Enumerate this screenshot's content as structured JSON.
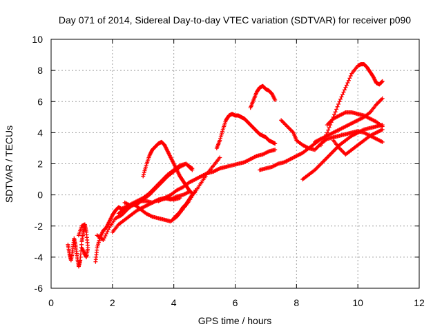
{
  "chart_data": {
    "type": "scatter",
    "title": "Day 071 of 2014, Sidereal Day-to-day VTEC variation (SDTVAR) for receiver p090",
    "xlabel": "GPS time / hours",
    "ylabel": "SDTVAR / TECUs",
    "xlim": [
      0,
      12
    ],
    "ylim": [
      -6,
      10
    ],
    "x_ticks": [
      "0",
      "2",
      "4",
      "6",
      "8",
      "10",
      "12"
    ],
    "y_ticks": [
      "-6",
      "-4",
      "-2",
      "0",
      "2",
      "4",
      "6",
      "8",
      "10"
    ],
    "grid": true,
    "marker": "plus",
    "colors": {
      "points": "#ff0000"
    },
    "series": [
      {
        "x": [
          0.55,
          0.6,
          0.65,
          0.7,
          0.75,
          0.8,
          0.85,
          0.9,
          0.95,
          1.0,
          1.05,
          1.1
        ],
        "y": [
          -3.2,
          -3.8,
          -4.2,
          -3.6,
          -2.8,
          -3.3,
          -4.0,
          -4.6,
          -4.2,
          -3.0,
          -2.4,
          -2.0
        ]
      },
      {
        "x": [
          0.9,
          1.0,
          1.1,
          1.15,
          1.2,
          1.15,
          1.1,
          1.0
        ],
        "y": [
          -2.6,
          -2.0,
          -1.9,
          -2.4,
          -3.4,
          -4.0,
          -3.8,
          -3.4
        ]
      },
      {
        "x": [
          1.45,
          1.5,
          1.6,
          1.7,
          1.8,
          1.9,
          2.0,
          2.1,
          2.2,
          2.3,
          2.5,
          2.7,
          2.9,
          3.1,
          3.3,
          3.5,
          3.7,
          3.9,
          4.1,
          4.3,
          4.5,
          4.7
        ],
        "y": [
          -4.3,
          -3.4,
          -2.7,
          -2.3,
          -2.1,
          -1.7,
          -1.3,
          -1.0,
          -0.8,
          -0.9,
          -0.7,
          -0.6,
          -0.9,
          -1.2,
          -1.4,
          -1.5,
          -1.6,
          -1.7,
          -1.4,
          -0.9,
          -0.4,
          0.3
        ]
      },
      {
        "x": [
          1.5,
          1.7,
          1.9,
          2.1,
          2.3,
          2.5,
          2.7,
          2.9,
          3.1,
          3.3,
          3.5,
          3.7,
          3.9,
          4.1,
          4.3,
          4.5
        ],
        "y": [
          -2.6,
          -2.9,
          -2.1,
          -1.5,
          -1.3,
          -0.9,
          -0.6,
          -0.4,
          -0.4,
          -0.5,
          -0.3,
          -0.2,
          -0.3,
          -0.1,
          0.0,
          0.2
        ]
      },
      {
        "x": [
          2.0,
          2.2,
          2.4,
          2.6,
          2.8,
          3.0,
          3.2,
          3.4,
          3.6,
          3.8,
          4.0,
          4.2
        ],
        "y": [
          -2.4,
          -1.9,
          -1.6,
          -1.3,
          -1.0,
          -0.8,
          -0.6,
          -0.4,
          -0.3,
          -0.2,
          -0.3,
          -0.2
        ]
      },
      {
        "x": [
          2.2,
          2.4,
          2.6,
          2.8,
          3.0,
          3.2,
          3.4,
          3.6,
          3.8,
          4.0,
          4.2,
          4.4,
          4.6
        ],
        "y": [
          -1.2,
          -0.9,
          -0.6,
          -0.4,
          -0.2,
          0.1,
          0.5,
          0.9,
          1.3,
          1.6,
          1.9,
          2.0,
          1.7
        ]
      },
      {
        "x": [
          2.4,
          2.6,
          2.8,
          3.0,
          3.2,
          3.4,
          3.6,
          3.8,
          4.0,
          4.2,
          4.4,
          4.6
        ],
        "y": [
          -0.5,
          -0.7,
          -0.6,
          -0.3,
          0.0,
          0.4,
          0.8,
          1.2,
          1.5,
          1.8,
          2.0,
          1.6
        ]
      },
      {
        "x": [
          3.0,
          3.1,
          3.2,
          3.3,
          3.4,
          3.5,
          3.6,
          3.7,
          3.8,
          3.9,
          4.0,
          4.1,
          4.2,
          4.3,
          4.4,
          4.5,
          4.6
        ],
        "y": [
          1.2,
          1.9,
          2.5,
          2.9,
          3.1,
          3.3,
          3.4,
          3.2,
          2.8,
          2.4,
          2.0,
          1.6,
          1.2,
          0.9,
          0.6,
          0.3,
          0.1
        ]
      },
      {
        "x": [
          3.5,
          3.7,
          3.9,
          4.1,
          4.3,
          4.5,
          4.7,
          4.9,
          5.1,
          5.3,
          5.5,
          5.7,
          5.9,
          6.1,
          6.3,
          6.5,
          6.7,
          6.9,
          7.1,
          7.3
        ],
        "y": [
          -0.4,
          -0.2,
          0.0,
          0.3,
          0.5,
          0.8,
          1.0,
          1.2,
          1.4,
          1.5,
          1.7,
          1.8,
          1.9,
          2.0,
          2.1,
          2.3,
          2.5,
          2.6,
          2.8,
          2.9
        ]
      },
      {
        "x": [
          4.0,
          4.1,
          4.2,
          4.3,
          4.4,
          4.5,
          4.6,
          4.7,
          4.9,
          5.1,
          5.3,
          5.5
        ],
        "y": [
          -1.5,
          -1.3,
          -1.1,
          -0.8,
          -0.6,
          -0.3,
          0.0,
          0.2,
          0.8,
          1.4,
          1.9,
          2.4
        ]
      },
      {
        "x": [
          5.4,
          5.5,
          5.6,
          5.7,
          5.8,
          5.9,
          6.0,
          6.1,
          6.2,
          6.3,
          6.4,
          6.5,
          6.6,
          6.7,
          6.8,
          6.9,
          7.0,
          7.1,
          7.2,
          7.3
        ],
        "y": [
          3.0,
          3.5,
          4.2,
          4.8,
          5.1,
          5.2,
          5.1,
          5.1,
          5.0,
          4.9,
          4.7,
          4.5,
          4.3,
          4.1,
          3.9,
          3.8,
          3.7,
          3.5,
          3.4,
          3.3
        ]
      },
      {
        "x": [
          6.5,
          6.6,
          6.7,
          6.8,
          6.9,
          7.0,
          7.1,
          7.2,
          7.3
        ],
        "y": [
          5.6,
          6.1,
          6.6,
          6.9,
          7.0,
          6.8,
          6.7,
          6.5,
          6.1
        ]
      },
      {
        "x": [
          6.8,
          7.0,
          7.2,
          7.4,
          7.6,
          7.8,
          8.0,
          8.2,
          8.4,
          8.6,
          8.8
        ],
        "y": [
          1.6,
          1.7,
          1.8,
          2.0,
          2.1,
          2.3,
          2.5,
          2.7,
          3.0,
          3.3,
          3.6
        ]
      },
      {
        "x": [
          7.5,
          7.7,
          7.9,
          8.0,
          8.2,
          8.4,
          8.6,
          8.8,
          9.0,
          9.2,
          9.4,
          9.6,
          9.8,
          10.0,
          10.2,
          10.4,
          10.6,
          10.8
        ],
        "y": [
          4.8,
          4.4,
          4.0,
          3.5,
          3.2,
          3.0,
          2.9,
          3.3,
          3.6,
          3.7,
          3.8,
          3.9,
          4.0,
          4.1,
          4.0,
          3.8,
          3.6,
          3.4
        ]
      },
      {
        "x": [
          8.2,
          8.4,
          8.6,
          8.8,
          9.0,
          9.2,
          9.4,
          9.6,
          9.8,
          10.0,
          10.2,
          10.4,
          10.6,
          10.8
        ],
        "y": [
          1.0,
          1.3,
          1.6,
          2.0,
          2.4,
          2.8,
          3.2,
          3.5,
          3.8,
          4.0,
          4.2,
          4.3,
          4.4,
          4.5
        ]
      },
      {
        "x": [
          8.6,
          8.8,
          9.0,
          9.2,
          9.4,
          9.6,
          9.8,
          10.0,
          10.2,
          10.4,
          10.6,
          10.8
        ],
        "y": [
          3.4,
          3.6,
          3.8,
          4.0,
          4.2,
          4.4,
          4.6,
          4.8,
          5.0,
          5.3,
          5.8,
          6.2
        ]
      },
      {
        "x": [
          8.8,
          9.0,
          9.2,
          9.4,
          9.6,
          9.8,
          10.0,
          10.1,
          10.2,
          10.3,
          10.4,
          10.5,
          10.6,
          10.7,
          10.8
        ],
        "y": [
          3.2,
          4.0,
          5.0,
          6.0,
          6.9,
          7.8,
          8.3,
          8.4,
          8.4,
          8.2,
          7.9,
          7.6,
          7.2,
          7.1,
          7.3
        ]
      },
      {
        "x": [
          9.0,
          9.2,
          9.4,
          9.6,
          9.8,
          10.0,
          10.2,
          10.4,
          10.6,
          10.8
        ],
        "y": [
          4.5,
          4.9,
          5.1,
          5.3,
          5.3,
          5.2,
          5.1,
          4.9,
          4.7,
          4.4
        ]
      },
      {
        "x": [
          9.2,
          9.4,
          9.6,
          9.8,
          10.0,
          10.2,
          10.4,
          10.6,
          10.8
        ],
        "y": [
          3.5,
          3.0,
          2.6,
          2.9,
          3.2,
          3.5,
          3.8,
          4.0,
          4.2
        ]
      }
    ]
  }
}
